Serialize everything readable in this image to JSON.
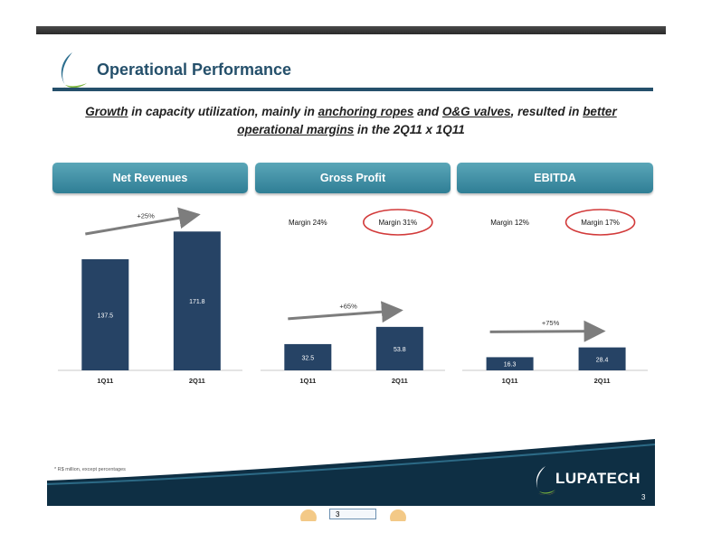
{
  "slide": {
    "title": "Operational Performance",
    "headline": {
      "p1": "Growth",
      "p2": " in capacity utilization, mainly in ",
      "p3": "anchoring ropes",
      "p4": " and ",
      "p5": "O&G valves",
      "p6": ", resulted in ",
      "p7": "better operational margins",
      "p8": " in the 2Q11 x 1Q11"
    },
    "footnote": "* R$ million, except percentages",
    "brand": "LUPATECH",
    "page_number": "3",
    "viewer_page": "3"
  },
  "colors": {
    "bar": "#264365",
    "header": "#3f8fa6",
    "arrow": "#7d7d7d",
    "circle": "#d23a3a",
    "title": "#25506b"
  },
  "chart_data": [
    {
      "type": "bar",
      "title": "Net Revenues",
      "categories": [
        "1Q11",
        "2Q11"
      ],
      "values": [
        137.5,
        171.8
      ],
      "growth": "+25%",
      "margins": [],
      "ylim": [
        0,
        190
      ]
    },
    {
      "type": "bar",
      "title": "Gross Profit",
      "categories": [
        "1Q11",
        "2Q11"
      ],
      "values": [
        32.5,
        53.8
      ],
      "growth": "+65%",
      "margins": [
        "Margin 24%",
        "Margin 31%"
      ],
      "ylim": [
        0,
        190
      ]
    },
    {
      "type": "bar",
      "title": "EBITDA",
      "categories": [
        "1Q11",
        "2Q11"
      ],
      "values": [
        16.3,
        28.4
      ],
      "growth": "+75%",
      "margins": [
        "Margin 12%",
        "Margin 17%"
      ],
      "ylim": [
        0,
        190
      ]
    }
  ]
}
